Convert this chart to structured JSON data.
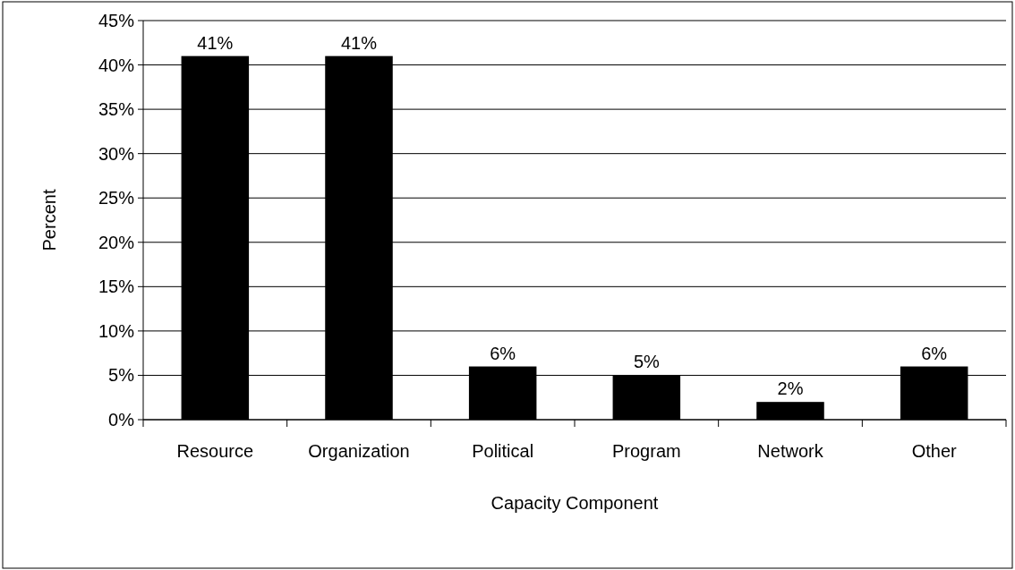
{
  "chart_data": {
    "type": "bar",
    "xlabel": "Capacity Component",
    "ylabel": "Percent",
    "categories": [
      "Resource",
      "Organization",
      "Political",
      "Program",
      "Network",
      "Other"
    ],
    "values": [
      41,
      41,
      6,
      5,
      2,
      6
    ],
    "color": "#000000",
    "value_labels": [
      "41%",
      "41%",
      "6%",
      "5%",
      "2%",
      "6%"
    ],
    "ylim": [
      0,
      45
    ],
    "yticks": [
      {
        "value": 0,
        "label": "0%"
      },
      {
        "value": 5,
        "label": "5%"
      },
      {
        "value": 10,
        "label": "10%"
      },
      {
        "value": 15,
        "label": "15%"
      },
      {
        "value": 20,
        "label": "20%"
      },
      {
        "value": 25,
        "label": "25%"
      },
      {
        "value": 30,
        "label": "30%"
      },
      {
        "value": 35,
        "label": "35%"
      },
      {
        "value": 40,
        "label": "40%"
      },
      {
        "value": 45,
        "label": "45%"
      }
    ],
    "grid": "y"
  }
}
